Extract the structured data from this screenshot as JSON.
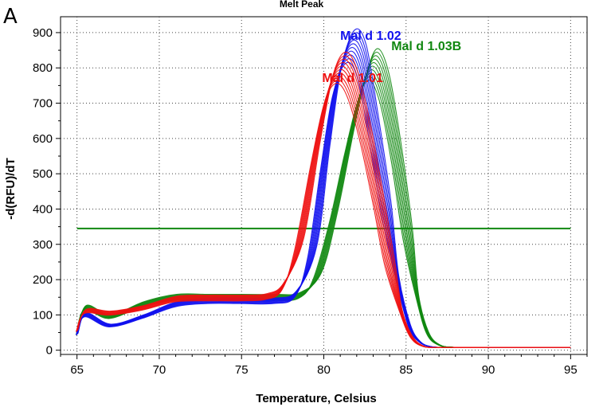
{
  "panel_label": "A",
  "chart_data": {
    "type": "line",
    "title": "Melt Peak",
    "xlabel": "Temperature, Celsius",
    "ylabel": "-d(RFU)/dT",
    "xlim": [
      64,
      96
    ],
    "ylim": [
      -12,
      945
    ],
    "xticks": [
      65,
      70,
      75,
      80,
      85,
      90,
      95
    ],
    "yticks": [
      0,
      100,
      200,
      300,
      400,
      500,
      600,
      700,
      800,
      900
    ],
    "grid": "dotted",
    "colors": {
      "red": "#ee1111",
      "blue": "#1111ee",
      "green": "#118811",
      "threshold": "#118811"
    },
    "threshold": {
      "y": 345
    },
    "series": [
      {
        "name": "Mal d 1.01",
        "color": "#ee1111",
        "replicates": 10,
        "label_at": [
          79.9,
          760
        ],
        "x": [
          65,
          65.5,
          67,
          69,
          71,
          73,
          75,
          76.5,
          77.5,
          78.5,
          79.5,
          80.3,
          81,
          81.7,
          82.5,
          83.3,
          84,
          84.7,
          85.3,
          86,
          87,
          90,
          95
        ],
        "y": [
          55,
          110,
          105,
          120,
          145,
          148,
          148,
          152,
          180,
          300,
          560,
          740,
          800,
          760,
          620,
          430,
          250,
          110,
          40,
          12,
          8,
          8,
          8
        ]
      },
      {
        "name": "Mal d 1.02",
        "color": "#1111ee",
        "replicates": 10,
        "label_at": [
          81.0,
          880
        ],
        "x": [
          65,
          65.5,
          67,
          69,
          71,
          73,
          75,
          77,
          78.3,
          79.3,
          80.1,
          80.8,
          81.6,
          82.3,
          83,
          83.8,
          84.5,
          85.2,
          85.8,
          86.5,
          87.5,
          90,
          95
        ],
        "y": [
          45,
          100,
          70,
          95,
          130,
          140,
          140,
          140,
          160,
          280,
          550,
          760,
          860,
          820,
          640,
          400,
          200,
          70,
          25,
          10,
          8,
          8,
          8
        ]
      },
      {
        "name": "Mal d 1.03B",
        "color": "#118811",
        "replicates": 10,
        "label_at": [
          84.1,
          850
        ],
        "x": [
          65,
          65.5,
          67,
          69,
          71,
          73,
          75,
          77,
          78.5,
          79.6,
          80.6,
          81.5,
          82.3,
          83,
          83.7,
          84.4,
          85.1,
          85.7,
          86.3,
          87,
          88,
          90,
          95
        ],
        "y": [
          45,
          120,
          95,
          130,
          150,
          150,
          150,
          150,
          155,
          210,
          380,
          580,
          740,
          810,
          740,
          560,
          330,
          150,
          50,
          15,
          8,
          8,
          8
        ]
      }
    ]
  }
}
